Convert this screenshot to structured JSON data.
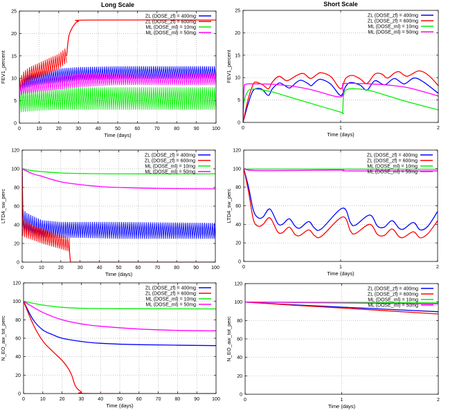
{
  "colors": {
    "ZL400": "#0000ff",
    "ZL600": "#ff0000",
    "ML10": "#00ee00",
    "ML50": "#ff00ff"
  },
  "chart_data": [
    {
      "type": "line",
      "title": "Long Scale",
      "xlabel": "Time (days)",
      "ylabel": "FEV1_percent",
      "xlim": [
        0,
        100
      ],
      "ylim": [
        0,
        25
      ],
      "xticks": [
        0,
        10,
        20,
        30,
        40,
        50,
        60,
        70,
        80,
        90,
        100
      ],
      "yticks": [
        0,
        5,
        10,
        15,
        20,
        25
      ],
      "grid": true,
      "legend": "top-right",
      "series": [
        {
          "key": "ZL400",
          "name": "ZL (DOSE_zf) = 400mg",
          "oscillating": {
            "period": 1,
            "x": [
              0,
              2,
              5,
              10,
              20,
              30,
              50,
              100
            ],
            "lower": [
              6,
              7.5,
              8,
              8.5,
              9,
              9.5,
              9.8,
              10
            ],
            "upper": [
              9,
              10.5,
              11,
              11.5,
              12.2,
              12.5,
              12.7,
              12.7
            ]
          }
        },
        {
          "key": "ZL600",
          "name": "ZL (DOSE_zf) = 600mg",
          "oscillating": {
            "period": 1,
            "x": [
              0,
              2,
              5,
              10,
              15,
              20,
              24
            ],
            "lower": [
              7,
              8,
              9,
              10,
              11,
              12,
              13.5
            ],
            "upper": [
              10,
              11.5,
              12.5,
              13.5,
              14.5,
              15.5,
              17
            ]
          },
          "x": [
            24,
            25,
            26,
            28,
            30,
            35,
            100
          ],
          "y": [
            15,
            19,
            20.5,
            22,
            22.7,
            23,
            23
          ]
        },
        {
          "key": "ML10",
          "name": "ML (DOSE_ml) = 10mg",
          "oscillating": {
            "period": 1,
            "x": [
              0,
              2,
              10,
              20,
              30,
              50,
              100
            ],
            "lower": [
              2.3,
              2.5,
              2.8,
              3,
              3,
              3,
              3
            ],
            "upper": [
              7.5,
              7.5,
              7.6,
              7.8,
              8,
              8,
              8
            ]
          }
        },
        {
          "key": "ML50",
          "name": "ML (DOSE_ml) = 50mg",
          "oscillating": {
            "period": 1,
            "x": [
              0,
              2,
              10,
              20,
              30,
              50,
              100
            ],
            "lower": [
              6,
              6.5,
              7,
              7.5,
              8,
              8.5,
              8.5
            ],
            "upper": [
              9,
              9.5,
              10,
              10.5,
              11,
              11,
              11
            ]
          }
        }
      ]
    },
    {
      "type": "line",
      "title": "Short Scale",
      "xlabel": "Time (days)",
      "ylabel": "FEV1_percent",
      "xlim": [
        0,
        2
      ],
      "ylim": [
        0,
        25
      ],
      "xticks": [
        0,
        1,
        2
      ],
      "yticks": [
        0,
        5,
        10,
        15,
        20,
        25
      ],
      "grid": true,
      "legend": "top-right",
      "series": [
        {
          "key": "ZL400",
          "name": "ZL (DOSE_zf) = 400mg",
          "x": [
            0,
            0.05,
            0.1,
            0.15,
            0.2,
            0.26,
            0.3,
            0.37,
            0.43,
            0.48,
            0.55,
            0.6,
            0.67,
            0.7,
            0.75,
            0.8,
            0.9,
            1.0,
            1.05,
            1.1,
            1.2,
            1.27,
            1.35,
            1.45,
            1.55,
            1.65,
            1.75,
            1.85,
            2
          ],
          "y": [
            0,
            4,
            7,
            7.6,
            7.3,
            6,
            7.5,
            8.8,
            8.2,
            7.7,
            9,
            9.4,
            8.6,
            8.2,
            9.2,
            9.6,
            8.5,
            6,
            8,
            8.9,
            8.3,
            7.2,
            9.3,
            8.4,
            9.8,
            8.6,
            9.9,
            9,
            6.5
          ]
        },
        {
          "key": "ZL600",
          "name": "ZL (DOSE_zf) = 600mg",
          "x": [
            0,
            0.05,
            0.1,
            0.13,
            0.2,
            0.26,
            0.3,
            0.37,
            0.45,
            0.55,
            0.62,
            0.69,
            0.75,
            0.8,
            0.9,
            1.0,
            1.05,
            1.12,
            1.2,
            1.27,
            1.35,
            1.42,
            1.48,
            1.55,
            1.6,
            1.68,
            1.8,
            1.9,
            2
          ],
          "y": [
            0,
            5,
            8.3,
            9,
            8.4,
            7.5,
            9,
            10.3,
            9.3,
            10.5,
            10.9,
            9.8,
            10.6,
            11.1,
            10.2,
            7.5,
            9.8,
            10.5,
            9.7,
            8.7,
            10.8,
            10.8,
            9.9,
            11,
            11.3,
            10.3,
            11.5,
            10.5,
            8.2
          ]
        },
        {
          "key": "ML10",
          "name": "ML (DOSE_ml) = 10mg",
          "x": [
            0,
            0.01,
            0.05,
            0.1,
            0.15,
            0.3,
            0.5,
            0.7,
            1.0,
            1.02,
            1.03,
            1.06,
            1.15,
            1.3,
            1.5,
            1.7,
            2
          ],
          "y": [
            0,
            4.5,
            7,
            7.4,
            7.4,
            6.8,
            5.5,
            4.2,
            2.3,
            2.3,
            6,
            7.3,
            7.5,
            7.1,
            5.8,
            4.5,
            2.8
          ]
        },
        {
          "key": "ML50",
          "name": "ML (DOSE_ml) = 50mg",
          "x": [
            0,
            0.01,
            0.03,
            0.1,
            0.3,
            0.5,
            0.7,
            1.0,
            1.02,
            1.05,
            1.3,
            1.5,
            1.7,
            2
          ],
          "y": [
            0,
            7.5,
            8.5,
            8.6,
            8.5,
            8.1,
            7.3,
            5.7,
            8.3,
            8.7,
            8.6,
            8.3,
            7.7,
            5.9
          ]
        }
      ]
    },
    {
      "type": "line",
      "xlabel": "Time (days)",
      "ylabel": "LTD4_sw_perc",
      "xlim": [
        0,
        100
      ],
      "ylim": [
        0,
        120
      ],
      "xticks": [
        0,
        10,
        20,
        30,
        40,
        50,
        60,
        70,
        80,
        90,
        100
      ],
      "yticks": [
        0,
        20,
        40,
        60,
        80,
        100,
        120
      ],
      "grid": true,
      "legend": "top-right",
      "series": [
        {
          "key": "ZL400",
          "name": "ZL (DOSE_zf) = 400mg",
          "x": [
            0,
            0.3
          ],
          "y": [
            100,
            57
          ],
          "oscillating": {
            "period": 1,
            "x": [
              0.3,
              2,
              5,
              10,
              20,
              30,
              50,
              100
            ],
            "lower": [
              30,
              28,
              27,
              26,
              26,
              26,
              25,
              25
            ],
            "upper": [
              57,
              53,
              50,
              45,
              43,
              43,
              43,
              42
            ]
          }
        },
        {
          "key": "ZL600",
          "name": "ZL (DOSE_zf) = 600mg",
          "x": [
            0,
            0.3
          ],
          "y": [
            100,
            47
          ],
          "oscillating": {
            "period": 1,
            "x": [
              0.3,
              2,
              5,
              10,
              15,
              20,
              24.5
            ],
            "lower": [
              28,
              26,
              24,
              20,
              17,
              14,
              11
            ],
            "upper": [
              47,
              44,
              40,
              36,
              32,
              29,
              26
            ]
          },
          "tail": {
            "x": [
              24.5,
              25,
              100
            ],
            "y": [
              11,
              0,
              0
            ]
          }
        },
        {
          "key": "ML10",
          "name": "ML (DOSE_ml) = 10mg",
          "x": [
            0,
            5,
            10,
            20,
            30,
            50,
            100
          ],
          "y": [
            100,
            98,
            97,
            95.5,
            95,
            94.5,
            94.5
          ]
        },
        {
          "key": "ML50",
          "name": "ML (DOSE_ml) = 50mg",
          "x": [
            0,
            5,
            10,
            20,
            30,
            40,
            50,
            70,
            100
          ],
          "y": [
            100,
            95,
            92,
            86,
            83,
            81,
            80,
            79,
            78.5
          ]
        }
      ]
    },
    {
      "type": "line",
      "xlabel": "Time (days)",
      "ylabel": "LTD4_sw_perc",
      "xlim": [
        0,
        2
      ],
      "ylim": [
        0,
        120
      ],
      "xticks": [
        0,
        1,
        2
      ],
      "yticks": [
        0,
        20,
        40,
        60,
        80,
        100,
        120
      ],
      "grid": true,
      "legend": "top-right",
      "series": [
        {
          "key": "ZL400",
          "name": "ZL (DOSE_zf) = 400mg",
          "x": [
            0,
            0.05,
            0.1,
            0.15,
            0.2,
            0.27,
            0.35,
            0.4,
            0.47,
            0.53,
            0.58,
            0.67,
            0.73,
            0.8,
            1.02,
            1.1,
            1.15,
            1.3,
            1.38,
            1.45,
            1.53,
            1.6,
            1.65,
            1.75,
            1.82,
            1.9,
            2
          ],
          "y": [
            100,
            80,
            55,
            47,
            48,
            56.5,
            41,
            40,
            46,
            38,
            36,
            43,
            36,
            35,
            57.5,
            42,
            39,
            50,
            38,
            37,
            44,
            36,
            35,
            42,
            34,
            38,
            54
          ]
        },
        {
          "key": "ZL600",
          "name": "ZL (DOSE_zf) = 600mg",
          "x": [
            0,
            0.05,
            0.1,
            0.15,
            0.2,
            0.27,
            0.35,
            0.4,
            0.47,
            0.53,
            0.58,
            0.67,
            0.73,
            0.8,
            1.02,
            1.1,
            1.15,
            1.3,
            1.38,
            1.45,
            1.53,
            1.6,
            1.65,
            1.75,
            1.82,
            1.9,
            2
          ],
          "y": [
            100,
            75,
            45,
            38,
            40,
            47,
            32,
            31,
            37,
            29,
            28,
            34,
            28,
            27,
            48,
            33,
            30,
            40,
            29,
            28,
            35,
            27,
            26,
            32,
            25.5,
            30,
            44
          ]
        },
        {
          "key": "ML10",
          "name": "ML (DOSE_ml) = 10mg",
          "x": [
            0,
            0.1,
            1,
            2
          ],
          "y": [
            100,
            99.5,
            99.5,
            99.2
          ]
        },
        {
          "key": "ML50",
          "name": "ML (DOSE_ml) = 50mg",
          "x": [
            0,
            0.1,
            0.5,
            1,
            1.1,
            2
          ],
          "y": [
            100,
            98,
            98,
            98.5,
            97.5,
            97.5
          ]
        }
      ]
    },
    {
      "type": "line",
      "xlabel": "Time (days)",
      "ylabel": "N_EO_aw_tot_perc",
      "xlim": [
        0,
        100
      ],
      "ylim": [
        0,
        120
      ],
      "xticks": [
        0,
        10,
        20,
        30,
        40,
        50,
        60,
        70,
        80,
        90,
        100
      ],
      "yticks": [
        0,
        20,
        40,
        60,
        80,
        100,
        120
      ],
      "grid": true,
      "legend": "top-right",
      "series": [
        {
          "key": "ZL400",
          "name": "ZL (DOSE_zf) = 400mg",
          "x": [
            0,
            5,
            10,
            15,
            20,
            30,
            40,
            60,
            100
          ],
          "y": [
            100,
            80,
            69,
            64,
            60,
            56.5,
            54.5,
            53,
            52
          ]
        },
        {
          "key": "ZL600",
          "name": "ZL (DOSE_zf) = 600mg",
          "x": [
            0,
            5,
            10,
            15,
            20,
            23,
            25,
            27,
            30,
            35,
            100
          ],
          "y": [
            100,
            75,
            57,
            46,
            36,
            28,
            20,
            8,
            2,
            0,
            0
          ]
        },
        {
          "key": "ML10",
          "name": "ML (DOSE_ml) = 10mg",
          "x": [
            0,
            10,
            20,
            30,
            50,
            100
          ],
          "y": [
            100,
            96,
            93.5,
            92.5,
            92,
            91.8
          ]
        },
        {
          "key": "ML50",
          "name": "ML (DOSE_ml) = 50mg",
          "x": [
            0,
            10,
            20,
            30,
            40,
            60,
            80,
            100
          ],
          "y": [
            100,
            88,
            80,
            75.5,
            73,
            70,
            68.5,
            68
          ]
        }
      ]
    },
    {
      "type": "line",
      "xlabel": "Time (days)",
      "ylabel": "N_EO_aw_tot_perc",
      "xlim": [
        0,
        2
      ],
      "ylim": [
        0,
        120
      ],
      "xticks": [
        0,
        1,
        2
      ],
      "yticks": [
        0,
        20,
        40,
        60,
        80,
        100,
        120
      ],
      "grid": true,
      "legend": "top-right",
      "series": [
        {
          "key": "ZL400",
          "name": "ZL (DOSE_zf) = 400mg",
          "x": [
            0,
            0.5,
            1,
            2
          ],
          "y": [
            100,
            97,
            94.5,
            89.5
          ]
        },
        {
          "key": "ZL600",
          "name": "ZL (DOSE_zf) = 600mg",
          "x": [
            0,
            0.5,
            1,
            2
          ],
          "y": [
            100,
            96.5,
            93.5,
            87
          ]
        },
        {
          "key": "ML10",
          "name": "ML (DOSE_ml) = 10mg",
          "x": [
            0,
            1,
            2
          ],
          "y": [
            100,
            99.7,
            99
          ]
        },
        {
          "key": "ML50",
          "name": "ML (DOSE_ml) = 50mg",
          "x": [
            0,
            1,
            2
          ],
          "y": [
            100,
            99,
            98
          ]
        }
      ]
    }
  ]
}
